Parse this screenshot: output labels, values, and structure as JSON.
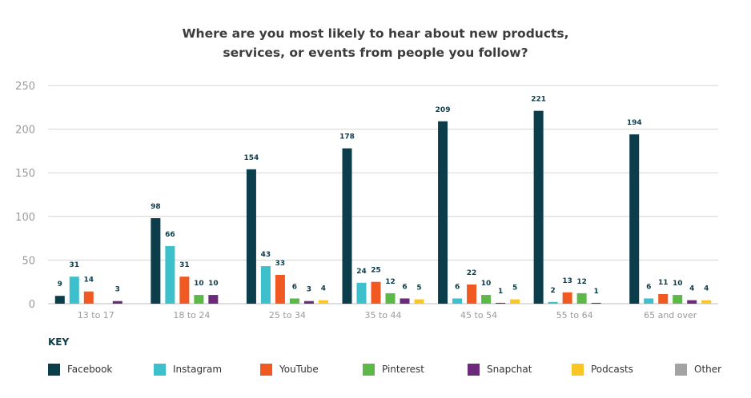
{
  "chart_data": {
    "type": "bar",
    "title_lines": [
      "Where are you most likely to hear about new products,",
      "services, or events from people you follow?"
    ],
    "categories": [
      "13 to 17",
      "18 to 24",
      "25 to 34",
      "35 to 44",
      "45 to 54",
      "55 to 64",
      "65 and over"
    ],
    "ylim": [
      0,
      250
    ],
    "yticks": [
      0,
      50,
      100,
      150,
      200,
      250
    ],
    "grid": true,
    "legend_title": "KEY",
    "legend_position": "bottom",
    "series": [
      {
        "name": "Facebook",
        "color": "#0b3d4a",
        "values": [
          9,
          98,
          154,
          178,
          209,
          221,
          194
        ]
      },
      {
        "name": "Instagram",
        "color": "#3dbfcc",
        "values": [
          31,
          66,
          43,
          24,
          6,
          2,
          6
        ]
      },
      {
        "name": "YouTube",
        "color": "#f05a22",
        "values": [
          14,
          31,
          33,
          25,
          22,
          13,
          11
        ]
      },
      {
        "name": "Pinterest",
        "color": "#5cb947",
        "values": [
          null,
          10,
          6,
          12,
          10,
          12,
          10
        ]
      },
      {
        "name": "Snapchat",
        "color": "#6b2a7a",
        "values": [
          3,
          10,
          3,
          6,
          1,
          1,
          4
        ]
      },
      {
        "name": "Podcasts",
        "color": "#f9c623",
        "values": [
          null,
          null,
          4,
          5,
          5,
          null,
          4
        ]
      },
      {
        "name": "Other",
        "color": "#a3a3a3",
        "values": [
          null,
          null,
          null,
          null,
          null,
          null,
          null
        ]
      }
    ]
  }
}
